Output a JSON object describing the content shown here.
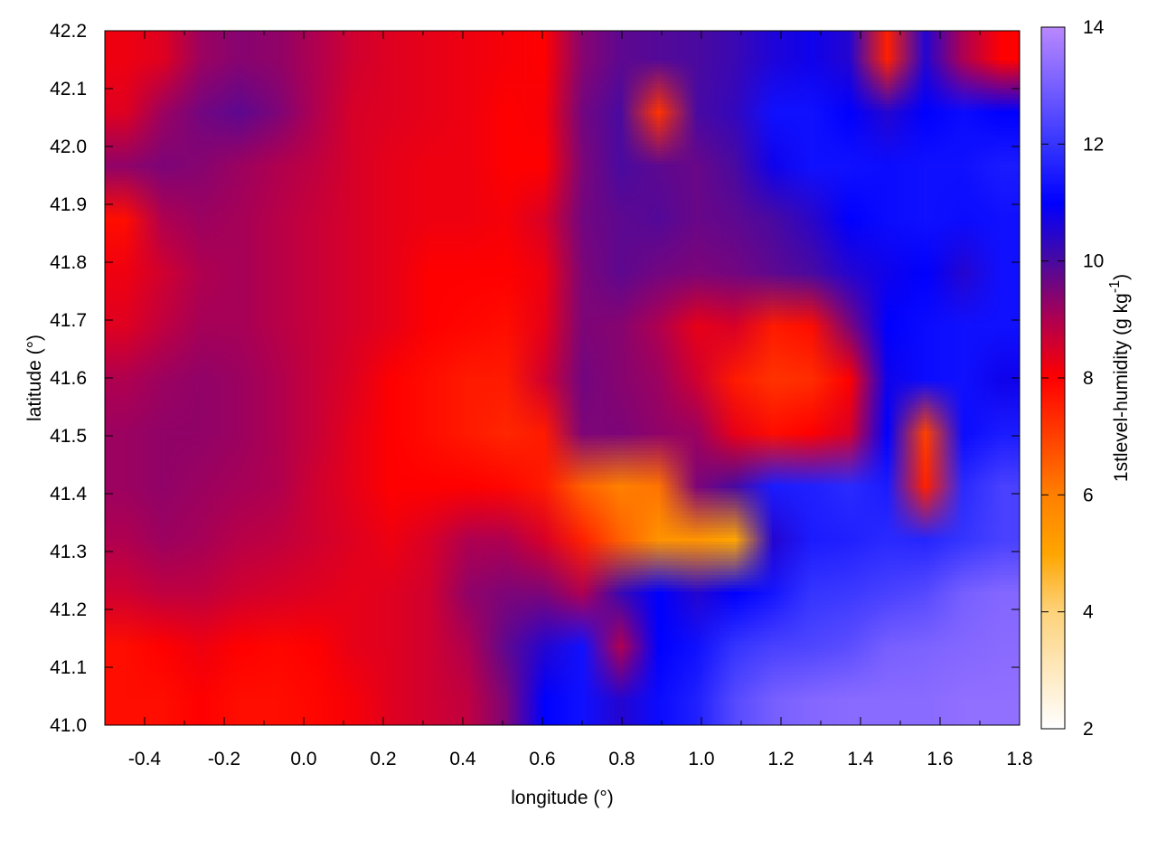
{
  "chart_data": {
    "type": "heatmap",
    "xlabel": "longitude (°)",
    "ylabel": "latitude (°)",
    "colorbar_label": "1stlevel-humidity (g kg-1)",
    "colorbar_label_parts": {
      "main": "1stlevel-humidity (g kg",
      "sup": "-1",
      "end": ")"
    },
    "xlim": [
      -0.5,
      1.8
    ],
    "ylim": [
      41.0,
      42.2
    ],
    "clim": [
      2,
      14
    ],
    "x_ticks": [
      "-0.4",
      "-0.2",
      "0.0",
      "0.2",
      "0.4",
      "0.6",
      "0.8",
      "1.0",
      "1.2",
      "1.4",
      "1.6",
      "1.8"
    ],
    "y_ticks": [
      "41.0",
      "41.1",
      "41.2",
      "41.3",
      "41.4",
      "41.5",
      "41.6",
      "41.7",
      "41.8",
      "41.9",
      "42.0",
      "42.1",
      "42.2"
    ],
    "colorbar_ticks": [
      "2",
      "4",
      "6",
      "8",
      "10",
      "12",
      "14"
    ],
    "colormap": [
      {
        "v": 2,
        "c": "#ffffff"
      },
      {
        "v": 4,
        "c": "#fdd27a"
      },
      {
        "v": 5,
        "c": "#ffa500"
      },
      {
        "v": 6,
        "c": "#ff8000"
      },
      {
        "v": 7,
        "c": "#ff4000"
      },
      {
        "v": 8,
        "c": "#ff0000"
      },
      {
        "v": 9,
        "c": "#b00050"
      },
      {
        "v": 10,
        "c": "#4a0aa0"
      },
      {
        "v": 11,
        "c": "#0000ff"
      },
      {
        "v": 12,
        "c": "#3535ff"
      },
      {
        "v": 14,
        "c": "#b888ff"
      }
    ],
    "grid_lon": [
      -0.5,
      -0.4,
      -0.3,
      -0.2,
      -0.1,
      0.0,
      0.1,
      0.2,
      0.3,
      0.4,
      0.5,
      0.6,
      0.7,
      0.8,
      0.9,
      1.0,
      1.1,
      1.2,
      1.3,
      1.4,
      1.5,
      1.6,
      1.7,
      1.8
    ],
    "grid_lat": [
      42.2,
      42.1,
      42.0,
      41.9,
      41.8,
      41.7,
      41.6,
      41.5,
      41.4,
      41.3,
      41.2,
      41.1,
      41.0
    ],
    "values": [
      [
        8.2,
        8.4,
        9.2,
        9.4,
        9.3,
        9.0,
        8.6,
        8.4,
        8.3,
        8.2,
        8.1,
        8.0,
        9.4,
        9.8,
        9.9,
        10.0,
        10.2,
        10.6,
        10.8,
        10.5,
        7.5,
        10.5,
        9.0,
        8.0
      ],
      [
        8.4,
        9.2,
        9.6,
        9.8,
        9.5,
        9.0,
        8.5,
        8.4,
        8.3,
        8.2,
        8.0,
        8.1,
        9.6,
        10.0,
        7.2,
        10.0,
        10.3,
        11.3,
        11.3,
        11.0,
        10.5,
        11.0,
        11.2,
        11.0
      ],
      [
        9.3,
        9.5,
        9.4,
        9.2,
        9.0,
        8.8,
        8.5,
        8.3,
        8.2,
        8.2,
        8.0,
        8.0,
        9.5,
        10.0,
        9.8,
        9.7,
        10.0,
        10.8,
        11.3,
        11.3,
        11.2,
        11.3,
        11.3,
        11.5
      ],
      [
        7.8,
        9.0,
        9.2,
        9.1,
        8.9,
        8.7,
        8.5,
        8.3,
        8.2,
        8.2,
        8.1,
        8.5,
        9.6,
        9.8,
        9.9,
        9.7,
        9.8,
        10.0,
        10.4,
        11.0,
        11.2,
        11.3,
        11.2,
        11.3
      ],
      [
        8.2,
        8.6,
        9.0,
        9.1,
        8.9,
        8.7,
        8.5,
        8.3,
        8.0,
        8.0,
        8.0,
        8.2,
        9.5,
        9.8,
        9.6,
        9.5,
        9.6,
        9.8,
        10.0,
        10.5,
        10.8,
        11.0,
        10.5,
        11.3
      ],
      [
        8.4,
        8.8,
        9.1,
        9.1,
        8.9,
        8.7,
        8.5,
        8.3,
        8.0,
        7.9,
        7.8,
        8.3,
        9.5,
        9.4,
        9.0,
        8.3,
        8.5,
        7.6,
        7.8,
        9.5,
        11.0,
        11.2,
        11.3,
        11.3
      ],
      [
        9.0,
        9.2,
        9.3,
        9.2,
        9.0,
        8.7,
        8.4,
        8.0,
        7.8,
        7.6,
        7.6,
        8.6,
        9.6,
        9.4,
        9.2,
        8.6,
        7.6,
        7.2,
        7.3,
        8.0,
        10.8,
        11.2,
        11.3,
        10.8
      ],
      [
        9.2,
        9.3,
        9.3,
        9.2,
        9.0,
        8.7,
        8.3,
        8.0,
        7.8,
        7.6,
        7.4,
        7.6,
        9.5,
        9.5,
        9.3,
        9.2,
        8.3,
        7.8,
        8.0,
        8.5,
        11.0,
        7.0,
        11.2,
        11.5
      ],
      [
        9.2,
        9.3,
        9.2,
        9.1,
        9.0,
        8.6,
        8.3,
        8.0,
        8.0,
        8.0,
        7.9,
        7.6,
        6.5,
        6.0,
        6.2,
        9.5,
        10.0,
        11.5,
        11.6,
        11.8,
        11.5,
        7.5,
        11.8,
        12.3
      ],
      [
        9.0,
        9.2,
        9.1,
        8.9,
        8.8,
        8.6,
        8.4,
        8.2,
        8.5,
        9.0,
        9.0,
        8.5,
        7.5,
        6.5,
        5.5,
        5.5,
        5.0,
        10.5,
        11.5,
        11.6,
        11.8,
        11.7,
        12.0,
        12.3
      ],
      [
        8.6,
        8.8,
        8.8,
        8.6,
        8.5,
        8.4,
        8.3,
        8.4,
        8.6,
        9.3,
        9.5,
        9.5,
        9.0,
        10.2,
        11.0,
        10.5,
        11.0,
        11.4,
        12.0,
        12.1,
        12.3,
        12.5,
        13.0,
        13.2
      ],
      [
        7.8,
        8.0,
        8.2,
        8.0,
        7.9,
        8.0,
        8.3,
        8.4,
        8.6,
        9.0,
        9.8,
        10.5,
        11.3,
        9.0,
        11.0,
        11.3,
        12.0,
        12.3,
        12.4,
        12.6,
        13.0,
        13.1,
        13.2,
        13.3
      ],
      [
        7.8,
        7.8,
        8.0,
        7.8,
        7.8,
        7.9,
        8.1,
        8.4,
        8.6,
        8.8,
        9.5,
        11.0,
        11.3,
        10.5,
        11.2,
        11.6,
        12.5,
        13.0,
        13.2,
        13.3,
        13.3,
        13.3,
        13.4,
        13.4
      ]
    ],
    "contours": "dark gray contour lines overlaid",
    "grid": false
  }
}
